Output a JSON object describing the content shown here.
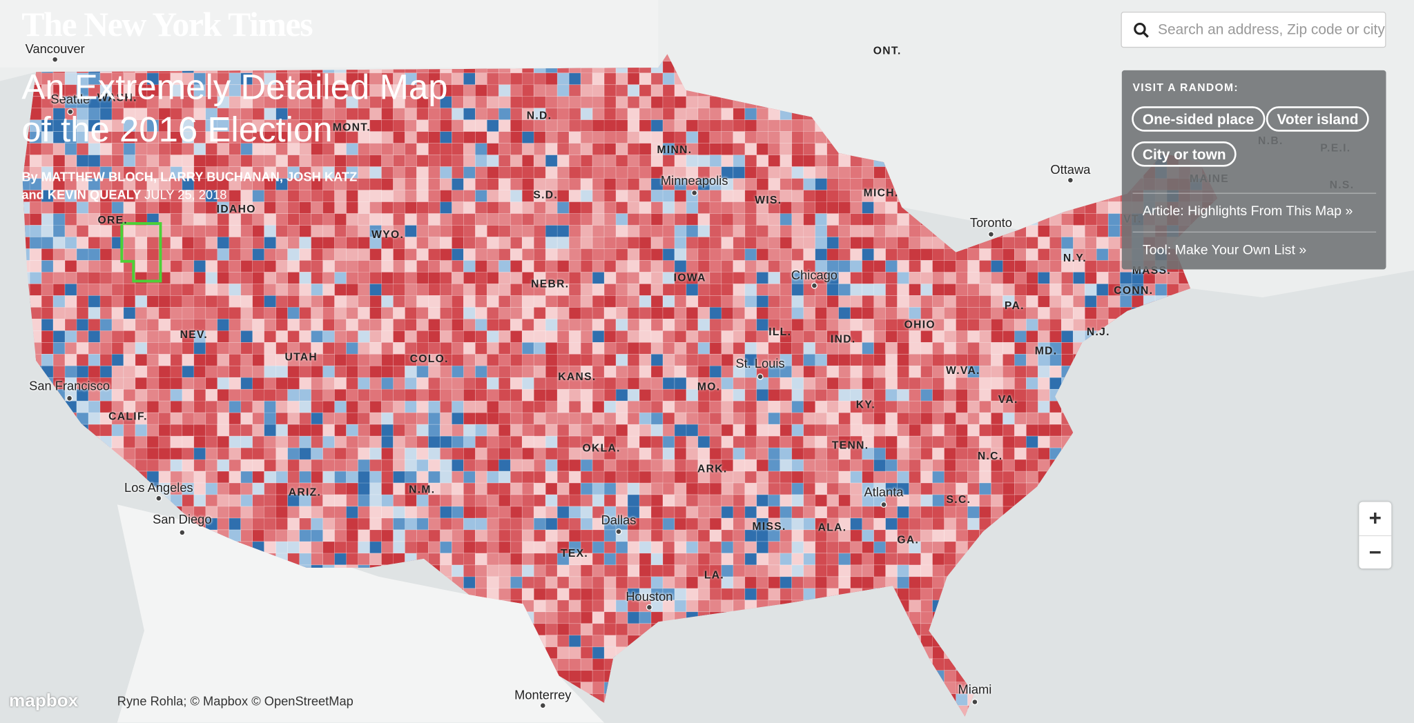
{
  "header": {
    "logo": "The New York Times",
    "title": "An Extremely Detailed Map of the 2016 Election",
    "byline": "By MATTHEW BLOCH, LARRY BUCHANAN, JOSH KATZ and KEVIN QUEALY",
    "date": "JULY 25, 2018"
  },
  "search": {
    "placeholder": "Search an address, Zip code or city"
  },
  "random_panel": {
    "heading": "VISIT A RANDOM:",
    "buttons": [
      "One-sided place",
      "Voter island",
      "City or town"
    ],
    "links": [
      "Article: Highlights From This Map »",
      "Tool: Make Your Own List »"
    ]
  },
  "map": {
    "state_labels": [
      "WASH.",
      "ORE.",
      "IDAHO",
      "MONT.",
      "WYO.",
      "N.D.",
      "S.D.",
      "NEBR.",
      "MINN.",
      "WIS.",
      "MICH.",
      "IOWA",
      "ILL.",
      "IND.",
      "OHIO",
      "PA.",
      "N.Y.",
      "VT.",
      "MAINE",
      "MASS.",
      "CONN.",
      "N.J.",
      "MD.",
      "W.VA.",
      "VA.",
      "KY.",
      "TENN.",
      "N.C.",
      "S.C.",
      "GA.",
      "ALA.",
      "MISS.",
      "LA.",
      "ARK.",
      "MO.",
      "KANS.",
      "OKLA.",
      "TEX.",
      "N.M.",
      "COLO.",
      "UTAH",
      "ARIZ.",
      "NEV.",
      "CALIF.",
      "ONT.",
      "N.B.",
      "P.E.I.",
      "N.S."
    ],
    "city_labels": [
      "Vancouver",
      "Seattle",
      "San Francisco",
      "Los Angeles",
      "San Diego",
      "Minneapolis",
      "Chicago",
      "St. Louis",
      "Toronto",
      "Ottawa",
      "Atlanta",
      "Dallas",
      "Houston",
      "Monterrey",
      "Miami"
    ]
  },
  "zoom": {
    "in": "+",
    "out": "−"
  },
  "attribution": {
    "logo": "mapbox",
    "text": "Ryne Rohla; © Mapbox © OpenStreetMap"
  }
}
